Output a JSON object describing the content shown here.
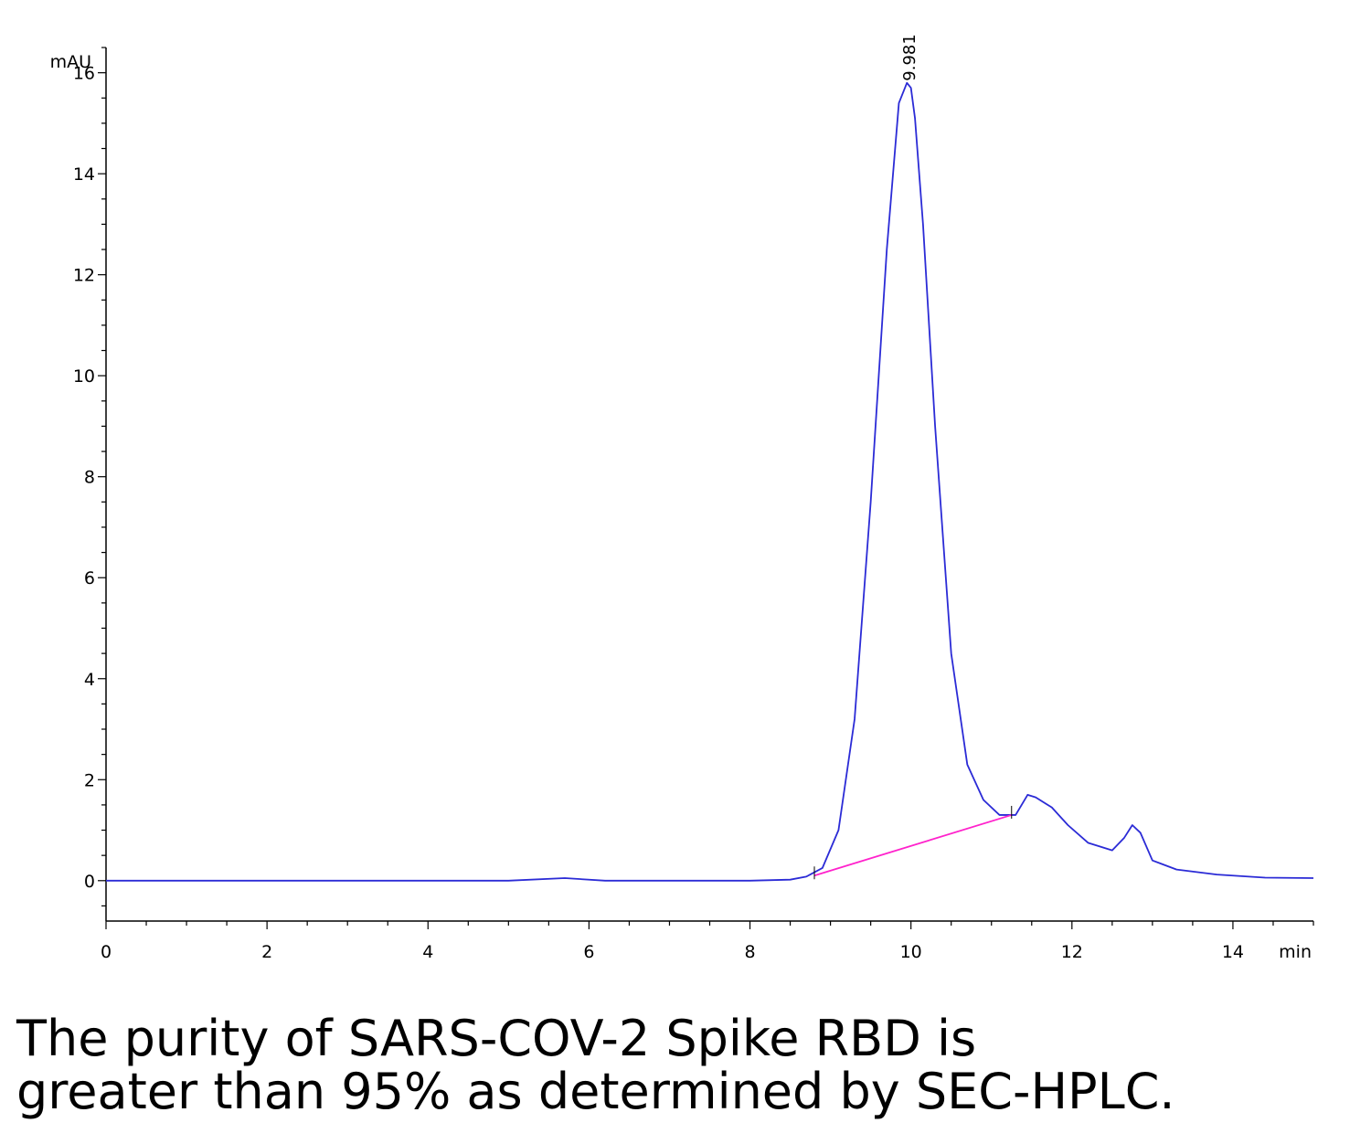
{
  "chart_data": {
    "type": "line",
    "ylabel": "mAU",
    "xlabel": "min",
    "xlim": [
      0,
      15
    ],
    "ylim": [
      -0.8,
      16.5
    ],
    "x_ticks": [
      0,
      2,
      4,
      6,
      8,
      10,
      12,
      14
    ],
    "y_ticks": [
      0,
      2,
      4,
      6,
      8,
      10,
      12,
      14,
      16
    ],
    "series": [
      {
        "color": "#2b2bd6",
        "x": [
          0,
          1,
          2,
          3,
          4,
          5,
          5.7,
          6.2,
          7,
          8,
          8.5,
          8.7,
          8.9,
          9.1,
          9.3,
          9.5,
          9.7,
          9.85,
          9.95,
          10.0,
          10.05,
          10.15,
          10.3,
          10.5,
          10.7,
          10.9,
          11.1,
          11.3,
          11.45,
          11.55,
          11.75,
          11.95,
          12.2,
          12.5,
          12.65,
          12.75,
          12.85,
          13.0,
          13.3,
          13.8,
          14.4,
          15.0
        ],
        "y": [
          0,
          0,
          0,
          0,
          0,
          0,
          0.05,
          0,
          0,
          0,
          0.02,
          0.08,
          0.25,
          1.0,
          3.2,
          7.5,
          12.5,
          15.4,
          15.8,
          15.7,
          15.1,
          13.0,
          9.0,
          4.5,
          2.3,
          1.6,
          1.3,
          1.3,
          1.7,
          1.65,
          1.45,
          1.1,
          0.75,
          0.6,
          0.85,
          1.1,
          0.95,
          0.4,
          0.22,
          0.12,
          0.06,
          0.05
        ]
      },
      {
        "color": "#ff22cc",
        "x": [
          8.8,
          11.25
        ],
        "y": [
          0.1,
          1.3
        ]
      }
    ],
    "annotations": [
      {
        "text": "9.981",
        "x": 9.981,
        "y": 15.8
      }
    ],
    "baseline_markers": [
      8.8,
      11.25
    ]
  },
  "caption": {
    "line1": "The purity of SARS-COV-2 Spike RBD is",
    "line2": "greater than 95% as determined by SEC-HPLC."
  }
}
